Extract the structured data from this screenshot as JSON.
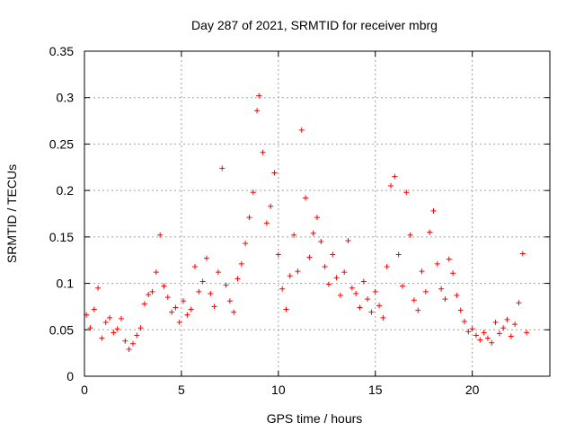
{
  "chart_data": {
    "type": "scatter",
    "title": "Day 287 of 2021, SRMTID for receiver mbrg",
    "xlabel": "GPS time / hours",
    "ylabel": "SRMTID / TECUs",
    "xlim": [
      0,
      24
    ],
    "ylim": [
      0,
      0.35
    ],
    "xticks": [
      0,
      5,
      10,
      15,
      20
    ],
    "xtick_labels": [
      "0",
      "5",
      "10",
      "15",
      "20"
    ],
    "yticks": [
      0,
      0.05,
      0.1,
      0.15,
      0.2,
      0.25,
      0.3,
      0.35
    ],
    "ytick_labels": [
      "0",
      "0.05",
      "0.1",
      "0.15",
      "0.2",
      "0.25",
      "0.3",
      "0.35"
    ],
    "grid": true,
    "marker": "+",
    "color": "#ff0000",
    "series": [
      {
        "name": "SRMTID",
        "points": [
          [
            0.1,
            0.066
          ],
          [
            0.3,
            0.052
          ],
          [
            0.5,
            0.072
          ],
          [
            0.7,
            0.095
          ],
          [
            0.9,
            0.041
          ],
          [
            1.1,
            0.058
          ],
          [
            1.3,
            0.063
          ],
          [
            1.5,
            0.047
          ],
          [
            1.7,
            0.051
          ],
          [
            1.9,
            0.062
          ],
          [
            2.1,
            0.038
          ],
          [
            2.3,
            0.029
          ],
          [
            2.5,
            0.035
          ],
          [
            2.7,
            0.044
          ],
          [
            2.9,
            0.052
          ],
          [
            3.1,
            0.078
          ],
          [
            3.3,
            0.088
          ],
          [
            3.5,
            0.091
          ],
          [
            3.7,
            0.112
          ],
          [
            3.9,
            0.152
          ],
          [
            4.1,
            0.097
          ],
          [
            4.3,
            0.085
          ],
          [
            4.5,
            0.069
          ],
          [
            4.7,
            0.074
          ],
          [
            4.9,
            0.058
          ],
          [
            5.1,
            0.081
          ],
          [
            5.3,
            0.066
          ],
          [
            5.5,
            0.072
          ],
          [
            5.7,
            0.118
          ],
          [
            5.9,
            0.091
          ],
          [
            6.1,
            0.102
          ],
          [
            6.3,
            0.127
          ],
          [
            6.5,
            0.089
          ],
          [
            6.7,
            0.075
          ],
          [
            6.9,
            0.112
          ],
          [
            7.1,
            0.224
          ],
          [
            7.3,
            0.098
          ],
          [
            7.5,
            0.081
          ],
          [
            7.7,
            0.069
          ],
          [
            7.9,
            0.105
          ],
          [
            8.1,
            0.121
          ],
          [
            8.3,
            0.143
          ],
          [
            8.5,
            0.171
          ],
          [
            8.7,
            0.198
          ],
          [
            8.9,
            0.286
          ],
          [
            9.0,
            0.302
          ],
          [
            9.2,
            0.241
          ],
          [
            9.4,
            0.165
          ],
          [
            9.6,
            0.183
          ],
          [
            9.8,
            0.219
          ],
          [
            10.0,
            0.131
          ],
          [
            10.2,
            0.094
          ],
          [
            10.4,
            0.072
          ],
          [
            10.6,
            0.108
          ],
          [
            10.8,
            0.152
          ],
          [
            11.0,
            0.113
          ],
          [
            11.2,
            0.265
          ],
          [
            11.4,
            0.192
          ],
          [
            11.6,
            0.128
          ],
          [
            11.8,
            0.154
          ],
          [
            12.0,
            0.171
          ],
          [
            12.2,
            0.145
          ],
          [
            12.4,
            0.118
          ],
          [
            12.6,
            0.099
          ],
          [
            12.8,
            0.131
          ],
          [
            13.0,
            0.106
          ],
          [
            13.2,
            0.087
          ],
          [
            13.4,
            0.112
          ],
          [
            13.6,
            0.146
          ],
          [
            13.8,
            0.095
          ],
          [
            14.0,
            0.089
          ],
          [
            14.2,
            0.074
          ],
          [
            14.4,
            0.102
          ],
          [
            14.6,
            0.083
          ],
          [
            14.8,
            0.069
          ],
          [
            15.0,
            0.091
          ],
          [
            15.2,
            0.076
          ],
          [
            15.4,
            0.063
          ],
          [
            15.6,
            0.118
          ],
          [
            15.8,
            0.205
          ],
          [
            16.0,
            0.215
          ],
          [
            16.2,
            0.131
          ],
          [
            16.4,
            0.097
          ],
          [
            16.6,
            0.198
          ],
          [
            16.8,
            0.152
          ],
          [
            17.0,
            0.082
          ],
          [
            17.2,
            0.071
          ],
          [
            17.4,
            0.113
          ],
          [
            17.6,
            0.091
          ],
          [
            17.8,
            0.155
          ],
          [
            18.0,
            0.178
          ],
          [
            18.2,
            0.121
          ],
          [
            18.4,
            0.094
          ],
          [
            18.6,
            0.083
          ],
          [
            18.8,
            0.126
          ],
          [
            19.0,
            0.111
          ],
          [
            19.2,
            0.087
          ],
          [
            19.4,
            0.071
          ],
          [
            19.6,
            0.059
          ],
          [
            19.8,
            0.048
          ],
          [
            20.0,
            0.051
          ],
          [
            20.2,
            0.044
          ],
          [
            20.4,
            0.039
          ],
          [
            20.6,
            0.047
          ],
          [
            20.8,
            0.041
          ],
          [
            21.0,
            0.036
          ],
          [
            21.2,
            0.058
          ],
          [
            21.4,
            0.046
          ],
          [
            21.6,
            0.052
          ],
          [
            21.8,
            0.061
          ],
          [
            22.0,
            0.043
          ],
          [
            22.2,
            0.056
          ],
          [
            22.4,
            0.079
          ],
          [
            22.6,
            0.132
          ],
          [
            22.8,
            0.047
          ]
        ]
      }
    ]
  }
}
